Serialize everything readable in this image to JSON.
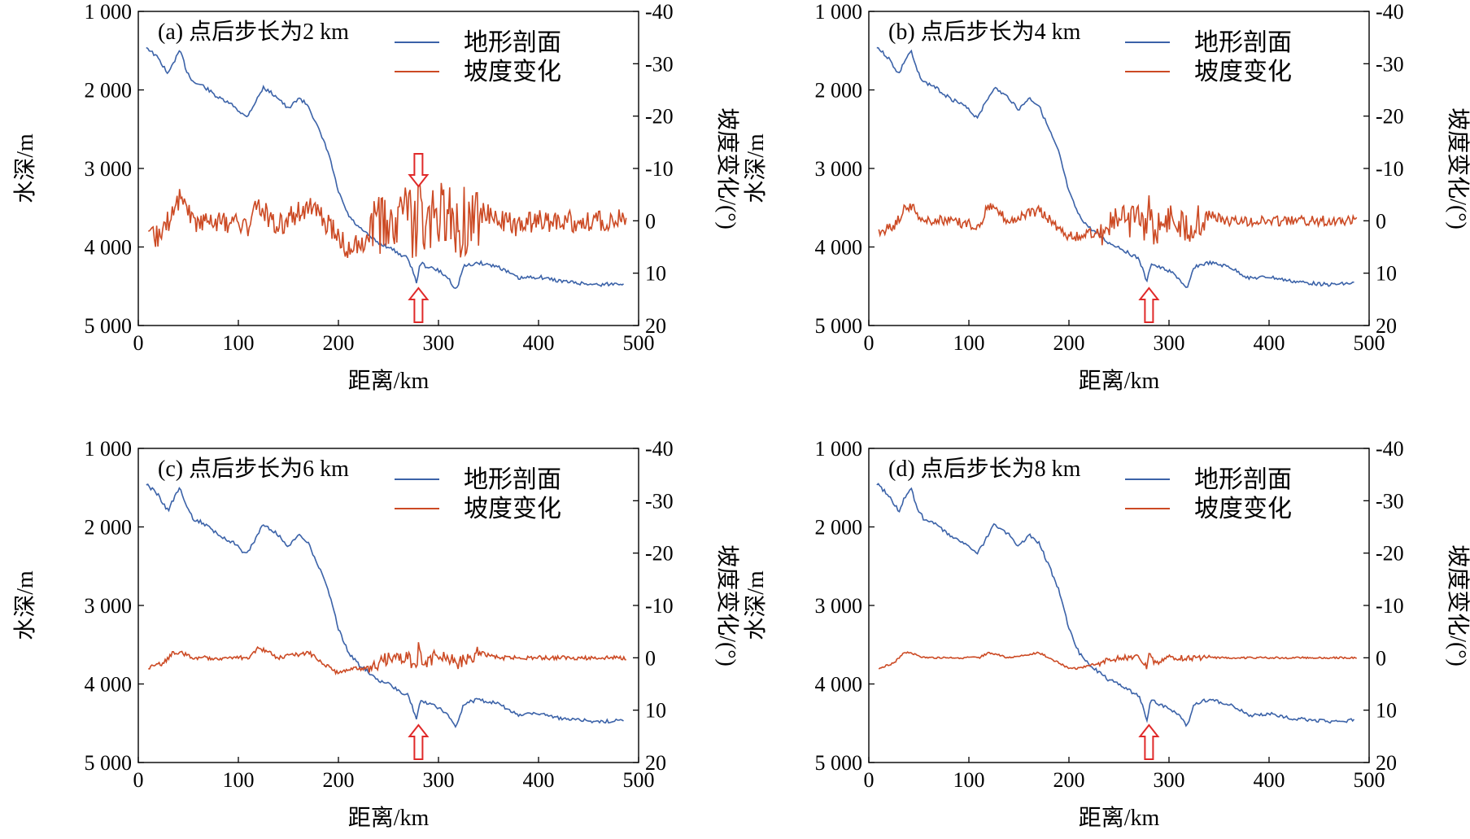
{
  "colors": {
    "profile": "#3b62a8",
    "slope": "#cc4a24",
    "arrow": "#e02a2a",
    "axis": "#000000"
  },
  "chart_data": [
    {
      "type": "line",
      "panel": "a",
      "title": "(a) 点后步长为2 km",
      "xlabel": "距离/km",
      "ylabel_left": "水深/m",
      "ylabel_right": "坡度变化/(°)",
      "xlim": [
        0,
        500
      ],
      "ylim_left": [
        1000,
        5000
      ],
      "ylim_right": [
        -40,
        20
      ],
      "x_ticks": [
        "0",
        "100",
        "200",
        "300",
        "400",
        "500"
      ],
      "y_left_ticks": [
        "1 000",
        "2 000",
        "3 000",
        "4 000",
        "5 000"
      ],
      "y_right_ticks": [
        "-40",
        "-30",
        "-20",
        "-10",
        "0",
        "10",
        "20"
      ],
      "arrows": [
        "top",
        "bottom"
      ],
      "arrow_x": 280,
      "noise_scale": 1.0,
      "series": [
        {
          "name": "地形剖面",
          "axis": "left",
          "x": [
            8,
            20,
            30,
            35,
            42,
            48,
            55,
            65,
            80,
            95,
            108,
            115,
            125,
            140,
            150,
            160,
            170,
            180,
            190,
            200,
            210,
            220,
            230,
            240,
            250,
            260,
            270,
            278,
            282,
            288,
            300,
            310,
            318,
            325,
            340,
            360,
            380,
            400,
            420,
            440,
            460,
            475,
            485
          ],
          "y": [
            1450,
            1600,
            1800,
            1650,
            1500,
            1750,
            1900,
            1950,
            2100,
            2200,
            2350,
            2200,
            1970,
            2100,
            2250,
            2100,
            2200,
            2500,
            2800,
            3300,
            3600,
            3750,
            3850,
            3950,
            4000,
            4080,
            4150,
            4450,
            4200,
            4250,
            4300,
            4400,
            4550,
            4250,
            4200,
            4250,
            4400,
            4380,
            4430,
            4460,
            4480,
            4470,
            4460
          ]
        },
        {
          "name": "坡度变化",
          "axis": "right",
          "x": [
            10,
            25,
            35,
            42,
            55,
            80,
            110,
            120,
            140,
            170,
            200,
            210,
            230,
            250,
            270,
            278,
            280,
            285,
            300,
            320,
            340,
            360,
            380,
            400,
            420,
            440,
            460,
            480,
            488
          ],
          "y": [
            4,
            2,
            -2,
            -5,
            0,
            0,
            1,
            -3,
            1,
            -3,
            3,
            6,
            3,
            1,
            0,
            3,
            -6,
            4,
            -1,
            1,
            -2,
            0,
            1,
            0,
            0,
            0,
            0,
            0,
            0
          ]
        }
      ]
    },
    {
      "type": "line",
      "panel": "b",
      "title": "(b) 点后步长为4 km",
      "xlabel": "距离/km",
      "ylabel_left": "水深/m",
      "ylabel_right": "坡度变化/(°)",
      "xlim": [
        0,
        500
      ],
      "ylim_left": [
        1000,
        5000
      ],
      "ylim_right": [
        -40,
        20
      ],
      "x_ticks": [
        "0",
        "100",
        "200",
        "300",
        "400",
        "500"
      ],
      "y_left_ticks": [
        "1 000",
        "2 000",
        "3 000",
        "4 000",
        "5 000"
      ],
      "y_right_ticks": [
        "-40",
        "-30",
        "-20",
        "-10",
        "0",
        "10",
        "20"
      ],
      "arrows": [
        "bottom"
      ],
      "arrow_x": 280,
      "noise_scale": 0.45,
      "series": [
        {
          "name": "地形剖面",
          "axis": "left",
          "x": [
            8,
            20,
            30,
            35,
            42,
            48,
            55,
            65,
            80,
            95,
            108,
            115,
            125,
            140,
            150,
            160,
            170,
            180,
            190,
            200,
            210,
            220,
            230,
            240,
            250,
            260,
            270,
            278,
            282,
            288,
            300,
            310,
            318,
            325,
            340,
            360,
            380,
            400,
            420,
            440,
            460,
            475,
            485
          ],
          "y": [
            1450,
            1600,
            1800,
            1650,
            1500,
            1750,
            1900,
            1950,
            2100,
            2200,
            2350,
            2200,
            1970,
            2100,
            2250,
            2100,
            2200,
            2500,
            2800,
            3300,
            3600,
            3750,
            3850,
            3950,
            4000,
            4080,
            4150,
            4450,
            4200,
            4250,
            4300,
            4400,
            4550,
            4250,
            4200,
            4250,
            4400,
            4380,
            4430,
            4460,
            4480,
            4470,
            4460
          ]
        },
        {
          "name": "坡度变化",
          "axis": "right",
          "x": [
            10,
            25,
            35,
            42,
            55,
            80,
            110,
            120,
            140,
            170,
            200,
            210,
            230,
            250,
            270,
            278,
            280,
            285,
            300,
            320,
            340,
            360,
            380,
            400,
            420,
            440,
            460,
            480,
            488
          ],
          "y": [
            2,
            1,
            -2,
            -3,
            0,
            0,
            1,
            -3,
            0,
            -2,
            3,
            3,
            2,
            0,
            0,
            3,
            -4,
            2,
            -1,
            1,
            -1,
            0,
            0,
            0,
            0,
            0,
            0,
            0,
            0
          ]
        }
      ]
    },
    {
      "type": "line",
      "panel": "c",
      "title": "(c) 点后步长为6 km",
      "xlabel": "距离/km",
      "ylabel_left": "水深/m",
      "ylabel_right": "坡度变化/(°)",
      "xlim": [
        0,
        500
      ],
      "ylim_left": [
        1000,
        5000
      ],
      "ylim_right": [
        -40,
        20
      ],
      "x_ticks": [
        "0",
        "100",
        "200",
        "300",
        "400",
        "500"
      ],
      "y_left_ticks": [
        "1 000",
        "2 000",
        "3 000",
        "4 000",
        "5 000"
      ],
      "y_right_ticks": [
        "-40",
        "-30",
        "-20",
        "-10",
        "0",
        "10",
        "20"
      ],
      "arrows": [
        "bottom"
      ],
      "arrow_x": 280,
      "noise_scale": 0.18,
      "series": [
        {
          "name": "地形剖面",
          "axis": "left",
          "x": [
            8,
            20,
            30,
            35,
            42,
            48,
            55,
            65,
            80,
            95,
            108,
            115,
            125,
            140,
            150,
            160,
            170,
            180,
            190,
            200,
            210,
            220,
            230,
            240,
            250,
            260,
            270,
            278,
            282,
            288,
            300,
            310,
            318,
            325,
            340,
            360,
            380,
            400,
            420,
            440,
            460,
            475,
            485
          ],
          "y": [
            1450,
            1600,
            1800,
            1650,
            1500,
            1750,
            1900,
            1950,
            2100,
            2200,
            2350,
            2200,
            1970,
            2100,
            2250,
            2100,
            2200,
            2500,
            2800,
            3300,
            3600,
            3750,
            3850,
            3950,
            4000,
            4080,
            4150,
            4450,
            4200,
            4250,
            4300,
            4400,
            4550,
            4250,
            4200,
            4250,
            4400,
            4380,
            4430,
            4460,
            4480,
            4470,
            4460
          ]
        },
        {
          "name": "坡度变化",
          "axis": "right",
          "x": [
            10,
            25,
            35,
            42,
            55,
            80,
            110,
            120,
            140,
            170,
            200,
            210,
            230,
            250,
            270,
            278,
            280,
            285,
            300,
            320,
            340,
            360,
            380,
            400,
            420,
            440,
            460,
            480,
            488
          ],
          "y": [
            2,
            1,
            -1,
            -1,
            0,
            0,
            0,
            -2,
            0,
            -1,
            3,
            2,
            2,
            0,
            0,
            3,
            -3,
            2,
            -1,
            1,
            -1,
            0,
            0,
            0,
            0,
            0,
            0,
            0,
            0
          ]
        }
      ]
    },
    {
      "type": "line",
      "panel": "d",
      "title": "(d) 点后步长为8 km",
      "xlabel": "距离/km",
      "ylabel_left": "水深/m",
      "ylabel_right": "坡度变化/(°)",
      "xlim": [
        0,
        500
      ],
      "ylim_left": [
        1000,
        5000
      ],
      "ylim_right": [
        -40,
        20
      ],
      "x_ticks": [
        "0",
        "100",
        "200",
        "300",
        "400",
        "500"
      ],
      "y_left_ticks": [
        "1 000",
        "2 000",
        "3 000",
        "4 000",
        "5 000"
      ],
      "y_right_ticks": [
        "-40",
        "-30",
        "-20",
        "-10",
        "0",
        "10",
        "20"
      ],
      "arrows": [
        "bottom"
      ],
      "arrow_x": 280,
      "noise_scale": 0.08,
      "series": [
        {
          "name": "地形剖面",
          "axis": "left",
          "x": [
            8,
            20,
            30,
            35,
            42,
            48,
            55,
            65,
            80,
            95,
            108,
            115,
            125,
            140,
            150,
            160,
            170,
            180,
            190,
            200,
            210,
            220,
            230,
            240,
            250,
            260,
            270,
            278,
            282,
            288,
            300,
            310,
            318,
            325,
            340,
            360,
            380,
            400,
            420,
            440,
            460,
            475,
            485
          ],
          "y": [
            1450,
            1600,
            1800,
            1650,
            1500,
            1750,
            1900,
            1950,
            2100,
            2200,
            2350,
            2200,
            1970,
            2100,
            2250,
            2100,
            2200,
            2500,
            2800,
            3300,
            3600,
            3750,
            3850,
            3950,
            4000,
            4080,
            4150,
            4450,
            4200,
            4250,
            4300,
            4400,
            4550,
            4250,
            4200,
            4250,
            4400,
            4380,
            4430,
            4460,
            4480,
            4470,
            4460
          ]
        },
        {
          "name": "坡度变化",
          "axis": "right",
          "x": [
            10,
            25,
            35,
            42,
            55,
            80,
            110,
            120,
            140,
            170,
            200,
            210,
            230,
            250,
            270,
            278,
            280,
            285,
            300,
            320,
            340,
            360,
            380,
            400,
            420,
            440,
            460,
            480,
            488
          ],
          "y": [
            2,
            1,
            -1,
            -1,
            0,
            0,
            0,
            -1,
            0,
            -1,
            2,
            2,
            1,
            0,
            0,
            2,
            -1,
            1,
            0,
            0,
            0,
            0,
            0,
            0,
            0,
            0,
            0,
            0,
            0
          ]
        }
      ]
    }
  ]
}
